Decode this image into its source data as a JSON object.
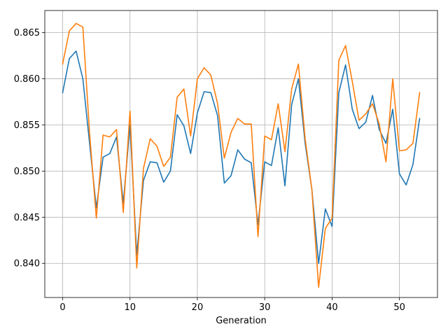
{
  "chart_data": {
    "type": "line",
    "title": "",
    "xlabel": "Generation",
    "ylabel": "",
    "xlim": [
      -2.65,
      55.65
    ],
    "ylim": [
      0.8363,
      0.8674
    ],
    "xticks": [
      0,
      10,
      20,
      30,
      40,
      50
    ],
    "yticks": [
      0.84,
      0.845,
      0.85,
      0.855,
      0.86,
      0.865
    ],
    "xtick_labels": [
      "0",
      "10",
      "20",
      "30",
      "40",
      "50"
    ],
    "ytick_labels": [
      "0.840",
      "0.845",
      "0.850",
      "0.855",
      "0.860",
      "0.865"
    ],
    "grid": true,
    "x": [
      0,
      1,
      2,
      3,
      4,
      5,
      6,
      7,
      8,
      9,
      10,
      11,
      12,
      13,
      14,
      15,
      16,
      17,
      18,
      19,
      20,
      21,
      22,
      23,
      24,
      25,
      26,
      27,
      28,
      29,
      30,
      31,
      32,
      33,
      34,
      35,
      36,
      37,
      38,
      39,
      40,
      41,
      42,
      43,
      44,
      45,
      46,
      47,
      48,
      49,
      50,
      51,
      52,
      53
    ],
    "series": [
      {
        "color": "#1f77b4",
        "values": [
          0.8585,
          0.8622,
          0.863,
          0.86,
          0.853,
          0.846,
          0.8515,
          0.8519,
          0.8537,
          0.8465,
          0.855,
          0.8409,
          0.849,
          0.851,
          0.8509,
          0.8488,
          0.85,
          0.8561,
          0.8549,
          0.8519,
          0.8563,
          0.8586,
          0.8585,
          0.856,
          0.8487,
          0.8495,
          0.8523,
          0.8513,
          0.8509,
          0.8442,
          0.851,
          0.8506,
          0.8547,
          0.8484,
          0.8572,
          0.86,
          0.853,
          0.848,
          0.84,
          0.8459,
          0.844,
          0.8585,
          0.8615,
          0.8567,
          0.8546,
          0.8553,
          0.8582,
          0.8545,
          0.853,
          0.8567,
          0.8497,
          0.8485,
          0.8507,
          0.8557
        ]
      },
      {
        "color": "#ff7f0e",
        "values": [
          0.8616,
          0.8652,
          0.866,
          0.8656,
          0.8541,
          0.8449,
          0.8539,
          0.8537,
          0.8545,
          0.8455,
          0.8565,
          0.8395,
          0.8503,
          0.8535,
          0.8527,
          0.8505,
          0.8515,
          0.858,
          0.8589,
          0.8538,
          0.86,
          0.8612,
          0.8604,
          0.8573,
          0.8514,
          0.8542,
          0.8557,
          0.8551,
          0.8551,
          0.8429,
          0.8538,
          0.8534,
          0.8573,
          0.8521,
          0.8589,
          0.8616,
          0.8535,
          0.848,
          0.8374,
          0.8438,
          0.8449,
          0.862,
          0.8636,
          0.8597,
          0.8555,
          0.8562,
          0.8573,
          0.8551,
          0.851,
          0.86,
          0.8522,
          0.8523,
          0.853,
          0.8585
        ]
      }
    ]
  }
}
